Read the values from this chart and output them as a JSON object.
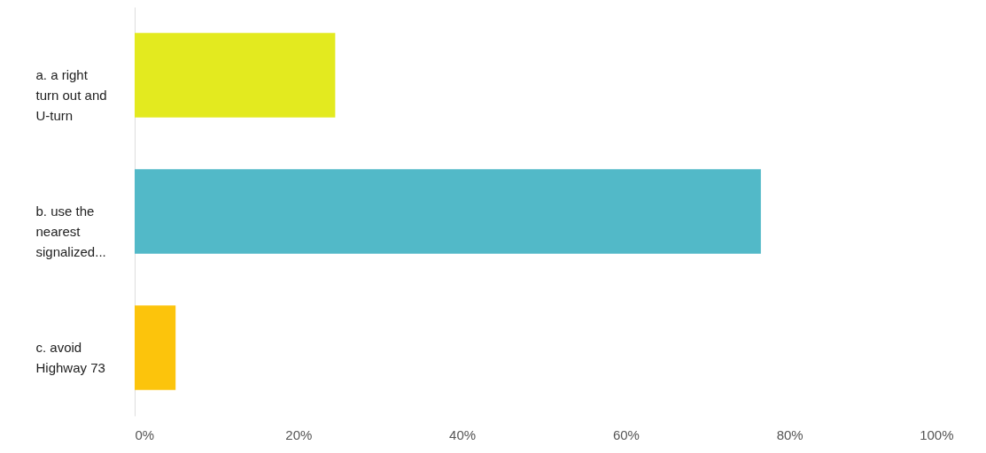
{
  "chart_data": {
    "type": "bar",
    "orientation": "horizontal",
    "categories": [
      "a. a right turn out and U-turn",
      "b. use the nearest signalized...",
      "c. avoid Highway 73"
    ],
    "values": [
      24.5,
      76.5,
      5
    ],
    "colors": [
      "#e3ea1f",
      "#52b9c8",
      "#fcc40c"
    ],
    "xlim": [
      0,
      100
    ],
    "xticks": [
      {
        "value": 0,
        "label": "0%"
      },
      {
        "value": 20,
        "label": "20%"
      },
      {
        "value": 40,
        "label": "40%"
      },
      {
        "value": 60,
        "label": "60%"
      },
      {
        "value": 80,
        "label": "80%"
      },
      {
        "value": 100,
        "label": "100%"
      }
    ],
    "grid": false
  }
}
